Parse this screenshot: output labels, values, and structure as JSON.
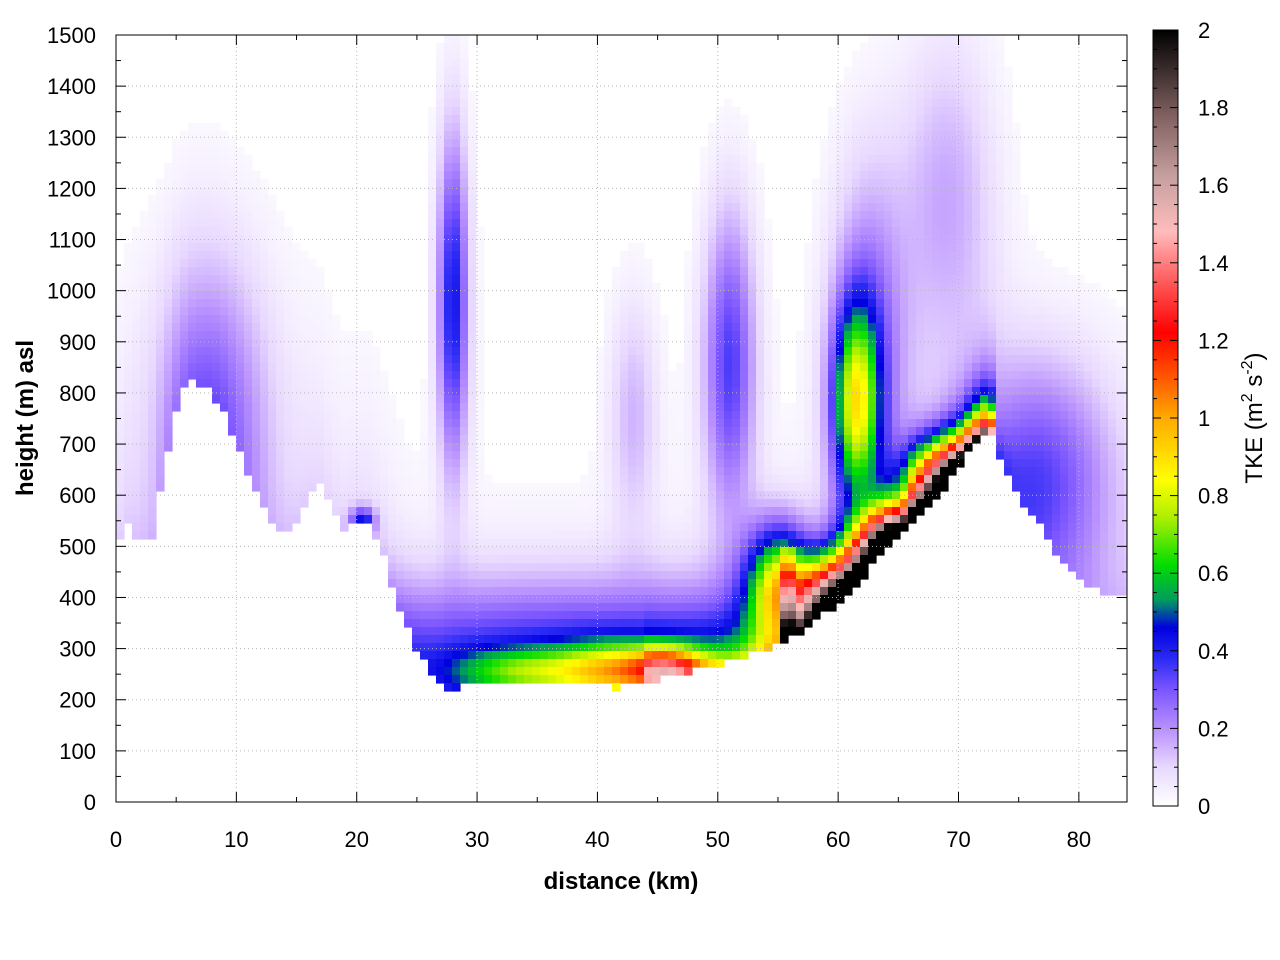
{
  "chart_data": {
    "type": "heatmap",
    "title": "",
    "xlabel": "distance (km)",
    "ylabel": "height (m) asl",
    "xlim": [
      0,
      84
    ],
    "ylim": [
      0,
      1500
    ],
    "x_ticks": [
      0,
      10,
      20,
      30,
      40,
      50,
      60,
      70,
      80
    ],
    "y_ticks": [
      0,
      100,
      200,
      300,
      400,
      500,
      600,
      700,
      800,
      900,
      1000,
      1100,
      1200,
      1300,
      1400,
      1500
    ],
    "grid": true,
    "colorbar": {
      "label": "TKE (m² s⁻²)",
      "label_base": "TKE (m",
      "label_sup1": "2",
      "label_mid": " s",
      "label_sup2": "-2",
      "label_end": ")",
      "range": [
        0,
        2
      ],
      "ticks": [
        "0",
        "0.2",
        "0.4",
        "0.6",
        "0.8",
        "1",
        "1.2",
        "1.4",
        "1.6",
        "1.8",
        "2"
      ],
      "colors": [
        {
          "v": 0.0,
          "c": "#ffffff"
        },
        {
          "v": 0.1,
          "c": "#e8d8ff"
        },
        {
          "v": 0.2,
          "c": "#b890ff"
        },
        {
          "v": 0.3,
          "c": "#7b55ff"
        },
        {
          "v": 0.38,
          "c": "#2a2af5"
        },
        {
          "v": 0.46,
          "c": "#0000e0"
        },
        {
          "v": 0.53,
          "c": "#009a60"
        },
        {
          "v": 0.62,
          "c": "#00dd00"
        },
        {
          "v": 0.74,
          "c": "#aaee00"
        },
        {
          "v": 0.84,
          "c": "#ffff00"
        },
        {
          "v": 1.0,
          "c": "#ffaa00"
        },
        {
          "v": 1.1,
          "c": "#ff5a00"
        },
        {
          "v": 1.22,
          "c": "#ff0000"
        },
        {
          "v": 1.36,
          "c": "#ff6060"
        },
        {
          "v": 1.48,
          "c": "#ffbcbc"
        },
        {
          "v": 1.62,
          "c": "#c8a0a0"
        },
        {
          "v": 1.78,
          "c": "#806060"
        },
        {
          "v": 2.0,
          "c": "#000000"
        }
      ]
    },
    "terrain": [
      [
        0,
        500
      ],
      [
        1,
        540
      ],
      [
        2,
        510
      ],
      [
        3,
        520
      ],
      [
        4,
        650
      ],
      [
        5,
        770
      ],
      [
        6,
        840
      ],
      [
        7,
        820
      ],
      [
        8,
        800
      ],
      [
        9,
        760
      ],
      [
        10,
        700
      ],
      [
        11,
        640
      ],
      [
        12,
        590
      ],
      [
        13,
        540
      ],
      [
        14,
        520
      ],
      [
        15,
        550
      ],
      [
        16,
        600
      ],
      [
        17,
        620
      ],
      [
        18,
        570
      ],
      [
        19,
        530
      ],
      [
        20,
        555
      ],
      [
        21,
        545
      ],
      [
        22,
        500
      ],
      [
        23,
        420
      ],
      [
        24,
        350
      ],
      [
        25,
        300
      ],
      [
        26,
        260
      ],
      [
        27,
        228
      ],
      [
        28,
        222
      ],
      [
        29,
        230
      ],
      [
        30,
        238
      ],
      [
        32,
        235
      ],
      [
        34,
        232
      ],
      [
        36,
        228
      ],
      [
        38,
        228
      ],
      [
        40,
        228
      ],
      [
        42,
        226
      ],
      [
        44,
        236
      ],
      [
        46,
        248
      ],
      [
        48,
        258
      ],
      [
        50,
        270
      ],
      [
        52,
        282
      ],
      [
        54,
        300
      ],
      [
        56,
        320
      ],
      [
        58,
        355
      ],
      [
        60,
        390
      ],
      [
        62,
        440
      ],
      [
        63,
        480
      ],
      [
        64,
        505
      ],
      [
        65,
        520
      ],
      [
        66,
        545
      ],
      [
        68,
        590
      ],
      [
        70,
        650
      ],
      [
        71,
        690
      ],
      [
        72,
        720
      ],
      [
        73,
        710
      ],
      [
        74,
        640
      ],
      [
        75,
        600
      ],
      [
        76,
        570
      ],
      [
        77,
        535
      ],
      [
        78,
        490
      ],
      [
        79,
        460
      ],
      [
        80,
        440
      ],
      [
        81,
        425
      ],
      [
        82,
        405
      ],
      [
        83,
        400
      ],
      [
        84,
        400
      ]
    ],
    "features": [
      {
        "name": "surface-layer",
        "cx": 40,
        "cy": 280,
        "rx": 30,
        "ry": 150,
        "peak": 0.34
      },
      {
        "name": "ridge-west-slope",
        "cx": 8,
        "cy": 760,
        "rx": 5,
        "ry": 320,
        "peak": 0.22
      },
      {
        "name": "ridge-east-slope",
        "cx": 77,
        "cy": 640,
        "rx": 6,
        "ry": 230,
        "peak": 0.28
      },
      {
        "name": "high-east-plume",
        "cx": 69,
        "cy": 1180,
        "rx": 4,
        "ry": 320,
        "peak": 0.16
      },
      {
        "name": "column-28km",
        "cx": 28,
        "cy": 980,
        "rx": 1.3,
        "ry": 330,
        "peak": 0.42
      },
      {
        "name": "column-51km",
        "cx": 51,
        "cy": 860,
        "rx": 2.2,
        "ry": 300,
        "peak": 0.34
      },
      {
        "name": "column-43km",
        "cx": 43,
        "cy": 760,
        "rx": 2,
        "ry": 230,
        "peak": 0.14
      },
      {
        "name": "rotor-core",
        "cx": 61.5,
        "cy": 780,
        "rx": 1.9,
        "ry": 190,
        "peak": 0.66
      },
      {
        "name": "rotor-halo",
        "cx": 62.5,
        "cy": 880,
        "rx": 3.2,
        "ry": 360,
        "peak": 0.26
      },
      {
        "name": "valley-core-west",
        "cx": 34,
        "cy": 255,
        "rx": 6,
        "ry": 45,
        "peak": 0.32
      },
      {
        "name": "valley-core-mid",
        "cx": 42,
        "cy": 255,
        "rx": 5,
        "ry": 55,
        "peak": 0.52
      },
      {
        "name": "valley-core-hot",
        "cx": 46,
        "cy": 260,
        "rx": 3,
        "ry": 40,
        "peak": 0.55
      },
      {
        "name": "lee-hotspot",
        "cx": 55,
        "cy": 420,
        "rx": 2.6,
        "ry": 120,
        "peak": 0.7
      },
      {
        "name": "lee-surface-shear",
        "cx": 60,
        "cy": 410,
        "rx": 3.5,
        "ry": 70,
        "peak": 0.9
      },
      {
        "name": "slope-core-1",
        "cx": 64,
        "cy": 500,
        "rx": 3,
        "ry": 70,
        "peak": 0.9
      },
      {
        "name": "slope-core-2",
        "cx": 69,
        "cy": 640,
        "rx": 3,
        "ry": 70,
        "peak": 0.85
      },
      {
        "name": "west-hill-core",
        "cx": 20.5,
        "cy": 550,
        "rx": 1,
        "ry": 25,
        "peak": 0.35
      }
    ]
  }
}
